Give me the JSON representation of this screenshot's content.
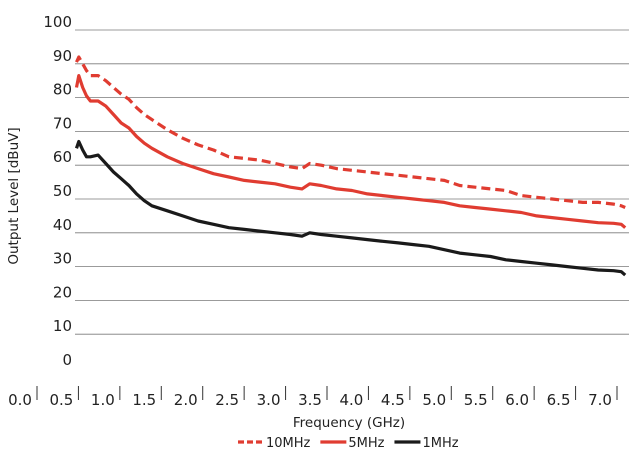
{
  "chart_data": {
    "type": "line",
    "xlabel": "Frequency (GHz)",
    "ylabel": "Output Level [dBuV]",
    "xlim": [
      0.0,
      7.2
    ],
    "ylim": [
      0,
      100
    ],
    "x_ticks": [
      "0.0",
      "0.5",
      "1.0",
      "1.5",
      "2.0",
      "2.5",
      "3.0",
      "3.5",
      "4.0",
      "4.5",
      "5.0",
      "5.5",
      "6.0",
      "6.5",
      "7.0"
    ],
    "y_ticks": [
      "0",
      "10",
      "20",
      "30",
      "40",
      "50",
      "60",
      "70",
      "80",
      "90",
      "100"
    ],
    "grid": "horizontal",
    "legend_position": "bottom-center",
    "series": [
      {
        "name": "10MHz",
        "color": "#e03c31",
        "style": "dashed",
        "x": [
          0.02,
          0.05,
          0.1,
          0.15,
          0.2,
          0.3,
          0.4,
          0.5,
          0.6,
          0.7,
          0.8,
          0.9,
          1.0,
          1.2,
          1.4,
          1.6,
          1.8,
          2.0,
          2.2,
          2.4,
          2.6,
          2.8,
          2.95,
          3.05,
          3.2,
          3.4,
          3.6,
          3.8,
          4.0,
          4.2,
          4.4,
          4.6,
          4.8,
          5.0,
          5.2,
          5.4,
          5.6,
          5.8,
          6.0,
          6.2,
          6.4,
          6.6,
          6.8,
          7.0,
          7.1,
          7.15
        ],
        "y": [
          90.5,
          92,
          90,
          88,
          86.5,
          86.5,
          85,
          83,
          81,
          79.5,
          77,
          75,
          73.5,
          70.5,
          68,
          66,
          64.5,
          62.5,
          62,
          61.5,
          60.5,
          59.5,
          59,
          60.5,
          60,
          59,
          58.5,
          58,
          57.5,
          57,
          56.5,
          56,
          55.5,
          54,
          53.5,
          53,
          52.5,
          51,
          50.5,
          50,
          49.5,
          49,
          49,
          48.5,
          48,
          47.5
        ]
      },
      {
        "name": "5MHz",
        "color": "#e03c31",
        "style": "solid",
        "x": [
          0.02,
          0.05,
          0.1,
          0.15,
          0.2,
          0.3,
          0.4,
          0.5,
          0.6,
          0.7,
          0.8,
          0.9,
          1.0,
          1.2,
          1.4,
          1.6,
          1.8,
          2.0,
          2.2,
          2.4,
          2.6,
          2.8,
          2.95,
          3.05,
          3.2,
          3.4,
          3.6,
          3.8,
          4.0,
          4.2,
          4.4,
          4.6,
          4.8,
          5.0,
          5.2,
          5.4,
          5.6,
          5.8,
          6.0,
          6.2,
          6.4,
          6.6,
          6.8,
          7.0,
          7.1,
          7.15
        ],
        "y": [
          83,
          86.5,
          83,
          80.5,
          79,
          79,
          77.5,
          75,
          72.5,
          71,
          68.5,
          66.5,
          65,
          62.5,
          60.5,
          59,
          57.5,
          56.5,
          55.5,
          55,
          54.5,
          53.5,
          53,
          54.5,
          54,
          53,
          52.5,
          51.5,
          51,
          50.5,
          50,
          49.5,
          49,
          48,
          47.5,
          47,
          46.5,
          46,
          45,
          44.5,
          44,
          43.5,
          43,
          42.8,
          42.5,
          41.5
        ]
      },
      {
        "name": "1MHz",
        "color": "#1a1a1a",
        "style": "solid",
        "x": [
          0.02,
          0.05,
          0.1,
          0.15,
          0.2,
          0.3,
          0.4,
          0.5,
          0.6,
          0.7,
          0.8,
          0.9,
          1.0,
          1.2,
          1.4,
          1.6,
          1.8,
          2.0,
          2.2,
          2.4,
          2.6,
          2.8,
          2.95,
          3.05,
          3.2,
          3.4,
          3.6,
          3.8,
          4.0,
          4.2,
          4.4,
          4.6,
          4.8,
          5.0,
          5.2,
          5.4,
          5.6,
          5.8,
          6.0,
          6.2,
          6.4,
          6.6,
          6.8,
          7.0,
          7.1,
          7.15
        ],
        "y": [
          65,
          67,
          64.5,
          62.5,
          62.5,
          63,
          60.5,
          58,
          56,
          54,
          51.5,
          49.5,
          48,
          46.5,
          45,
          43.5,
          42.5,
          41.5,
          41,
          40.5,
          40,
          39.5,
          39,
          40,
          39.5,
          39,
          38.5,
          38,
          37.5,
          37,
          36.5,
          36,
          35,
          34,
          33.5,
          33,
          32,
          31.5,
          31,
          30.5,
          30,
          29.5,
          29,
          28.8,
          28.5,
          27.5
        ]
      }
    ]
  }
}
